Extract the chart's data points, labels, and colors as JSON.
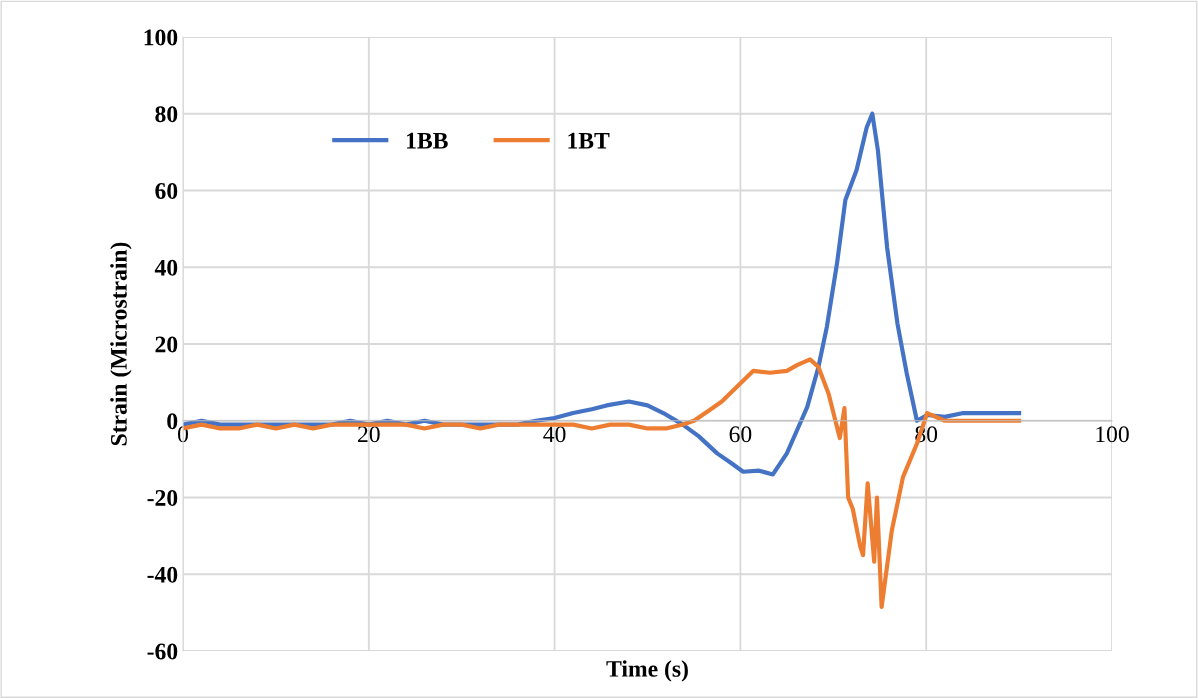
{
  "chart_data": {
    "type": "line",
    "xlabel": "Time (s)",
    "ylabel": "Strain (Microstrain)",
    "xlim": [
      0,
      100
    ],
    "ylim": [
      -60,
      100
    ],
    "xticks": [
      0,
      20,
      40,
      60,
      80,
      100
    ],
    "yticks": [
      -60,
      -40,
      -20,
      0,
      20,
      40,
      60,
      80,
      100
    ],
    "grid": true,
    "legend": "top left",
    "marker": "none",
    "line_style": "solid",
    "series": [
      {
        "name": "1BB",
        "color": "#4472c4",
        "x": [
          0,
          2,
          4,
          6,
          8,
          10,
          12,
          14,
          16,
          18,
          20,
          22,
          24,
          26,
          28,
          30,
          32,
          34,
          36,
          38,
          40,
          42,
          44,
          45.6,
          48,
          50,
          51.7,
          53.8,
          55.5,
          57.5,
          59,
          60.3,
          62,
          63.5,
          65,
          66,
          67.2,
          68.4,
          69.3,
          70.4,
          71.3,
          72.5,
          73.6,
          74.2,
          74.8,
          75.8,
          76.9,
          77.9,
          79,
          80.1,
          82,
          84,
          86,
          88,
          90
        ],
        "values": [
          -1,
          0,
          -1,
          -1,
          -1,
          -1,
          -1,
          -1,
          -1,
          0,
          -1,
          0,
          -1,
          0,
          -1,
          -1,
          -1,
          -1,
          -1,
          0,
          0.7,
          2,
          3,
          4,
          5,
          4,
          2,
          -1,
          -4,
          -8.5,
          -11,
          -13.3,
          -13,
          -14,
          -8.5,
          -3,
          3.6,
          14,
          24.4,
          41,
          57.5,
          65.3,
          76.5,
          80,
          70.5,
          45,
          25.4,
          12.4,
          0,
          1.5,
          1,
          2,
          2,
          2,
          2
        ]
      },
      {
        "name": "1BT",
        "color": "#ed7d31",
        "x": [
          0,
          2,
          4,
          6,
          8,
          10,
          12,
          14,
          16,
          18,
          20,
          22,
          24,
          26,
          28,
          30,
          32,
          34,
          36,
          38,
          40,
          42,
          44,
          46,
          48,
          50,
          52,
          53.8,
          55,
          56.7,
          58,
          59.6,
          61.4,
          63.2,
          65,
          66.1,
          67.5,
          68.4,
          69.5,
          70.7,
          71.2,
          71.6,
          72.1,
          72.9,
          73.2,
          73.7,
          74.4,
          74.7,
          75.2,
          76.3,
          77.5,
          79,
          80.1,
          82,
          84,
          86,
          88,
          90
        ],
        "values": [
          -2,
          -1,
          -2,
          -2,
          -1,
          -2,
          -1,
          -2,
          -1,
          -1,
          -1,
          -1,
          -1,
          -2,
          -1,
          -1,
          -2,
          -1,
          -1,
          -1,
          -1,
          -1,
          -2,
          -1,
          -1,
          -2,
          -2,
          -1,
          0,
          2.8,
          5,
          8.8,
          13,
          12.5,
          13,
          14.5,
          16,
          14,
          7,
          -4.5,
          3.3,
          -20,
          -23,
          -32.8,
          -35,
          -16.3,
          -36.7,
          -20,
          -48.5,
          -28.6,
          -14.7,
          -6,
          2,
          0,
          0,
          0,
          0,
          0
        ]
      }
    ]
  }
}
